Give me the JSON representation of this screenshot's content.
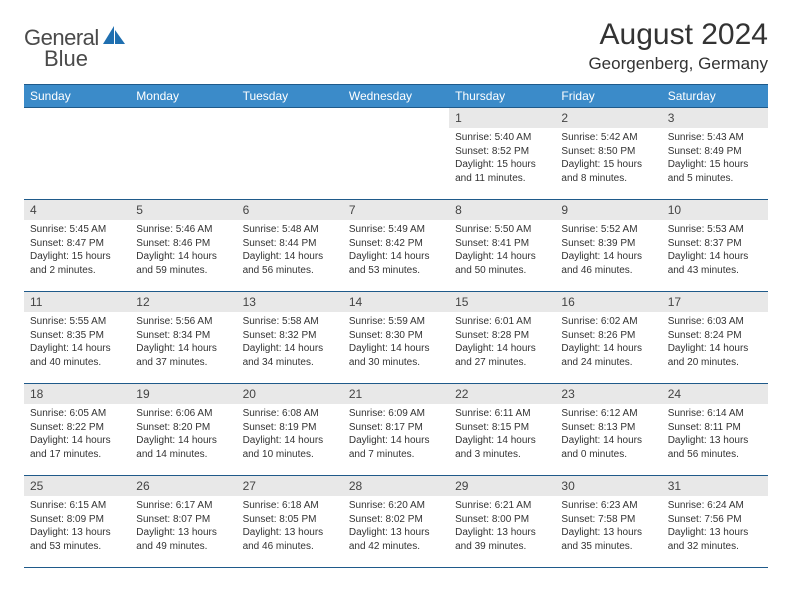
{
  "brand": {
    "name_prefix": "General",
    "name_suffix": "Blue"
  },
  "title": "August 2024",
  "location": "Georgenberg, Germany",
  "colors": {
    "header_bg": "#3b8bc9",
    "header_text": "#ffffff",
    "border": "#1f5a8a",
    "daynum_bg": "#e8e8e8",
    "body_text": "#333333",
    "logo_text": "#4a4a4a",
    "logo_icon": "#1f6fb0"
  },
  "day_names": [
    "Sunday",
    "Monday",
    "Tuesday",
    "Wednesday",
    "Thursday",
    "Friday",
    "Saturday"
  ],
  "weeks": [
    [
      {
        "empty": true
      },
      {
        "empty": true
      },
      {
        "empty": true
      },
      {
        "empty": true
      },
      {
        "n": "1",
        "sunrise": "5:40 AM",
        "sunset": "8:52 PM",
        "daylight": "15 hours and 11 minutes."
      },
      {
        "n": "2",
        "sunrise": "5:42 AM",
        "sunset": "8:50 PM",
        "daylight": "15 hours and 8 minutes."
      },
      {
        "n": "3",
        "sunrise": "5:43 AM",
        "sunset": "8:49 PM",
        "daylight": "15 hours and 5 minutes."
      }
    ],
    [
      {
        "n": "4",
        "sunrise": "5:45 AM",
        "sunset": "8:47 PM",
        "daylight": "15 hours and 2 minutes."
      },
      {
        "n": "5",
        "sunrise": "5:46 AM",
        "sunset": "8:46 PM",
        "daylight": "14 hours and 59 minutes."
      },
      {
        "n": "6",
        "sunrise": "5:48 AM",
        "sunset": "8:44 PM",
        "daylight": "14 hours and 56 minutes."
      },
      {
        "n": "7",
        "sunrise": "5:49 AM",
        "sunset": "8:42 PM",
        "daylight": "14 hours and 53 minutes."
      },
      {
        "n": "8",
        "sunrise": "5:50 AM",
        "sunset": "8:41 PM",
        "daylight": "14 hours and 50 minutes."
      },
      {
        "n": "9",
        "sunrise": "5:52 AM",
        "sunset": "8:39 PM",
        "daylight": "14 hours and 46 minutes."
      },
      {
        "n": "10",
        "sunrise": "5:53 AM",
        "sunset": "8:37 PM",
        "daylight": "14 hours and 43 minutes."
      }
    ],
    [
      {
        "n": "11",
        "sunrise": "5:55 AM",
        "sunset": "8:35 PM",
        "daylight": "14 hours and 40 minutes."
      },
      {
        "n": "12",
        "sunrise": "5:56 AM",
        "sunset": "8:34 PM",
        "daylight": "14 hours and 37 minutes."
      },
      {
        "n": "13",
        "sunrise": "5:58 AM",
        "sunset": "8:32 PM",
        "daylight": "14 hours and 34 minutes."
      },
      {
        "n": "14",
        "sunrise": "5:59 AM",
        "sunset": "8:30 PM",
        "daylight": "14 hours and 30 minutes."
      },
      {
        "n": "15",
        "sunrise": "6:01 AM",
        "sunset": "8:28 PM",
        "daylight": "14 hours and 27 minutes."
      },
      {
        "n": "16",
        "sunrise": "6:02 AM",
        "sunset": "8:26 PM",
        "daylight": "14 hours and 24 minutes."
      },
      {
        "n": "17",
        "sunrise": "6:03 AM",
        "sunset": "8:24 PM",
        "daylight": "14 hours and 20 minutes."
      }
    ],
    [
      {
        "n": "18",
        "sunrise": "6:05 AM",
        "sunset": "8:22 PM",
        "daylight": "14 hours and 17 minutes."
      },
      {
        "n": "19",
        "sunrise": "6:06 AM",
        "sunset": "8:20 PM",
        "daylight": "14 hours and 14 minutes."
      },
      {
        "n": "20",
        "sunrise": "6:08 AM",
        "sunset": "8:19 PM",
        "daylight": "14 hours and 10 minutes."
      },
      {
        "n": "21",
        "sunrise": "6:09 AM",
        "sunset": "8:17 PM",
        "daylight": "14 hours and 7 minutes."
      },
      {
        "n": "22",
        "sunrise": "6:11 AM",
        "sunset": "8:15 PM",
        "daylight": "14 hours and 3 minutes."
      },
      {
        "n": "23",
        "sunrise": "6:12 AM",
        "sunset": "8:13 PM",
        "daylight": "14 hours and 0 minutes."
      },
      {
        "n": "24",
        "sunrise": "6:14 AM",
        "sunset": "8:11 PM",
        "daylight": "13 hours and 56 minutes."
      }
    ],
    [
      {
        "n": "25",
        "sunrise": "6:15 AM",
        "sunset": "8:09 PM",
        "daylight": "13 hours and 53 minutes."
      },
      {
        "n": "26",
        "sunrise": "6:17 AM",
        "sunset": "8:07 PM",
        "daylight": "13 hours and 49 minutes."
      },
      {
        "n": "27",
        "sunrise": "6:18 AM",
        "sunset": "8:05 PM",
        "daylight": "13 hours and 46 minutes."
      },
      {
        "n": "28",
        "sunrise": "6:20 AM",
        "sunset": "8:02 PM",
        "daylight": "13 hours and 42 minutes."
      },
      {
        "n": "29",
        "sunrise": "6:21 AM",
        "sunset": "8:00 PM",
        "daylight": "13 hours and 39 minutes."
      },
      {
        "n": "30",
        "sunrise": "6:23 AM",
        "sunset": "7:58 PM",
        "daylight": "13 hours and 35 minutes."
      },
      {
        "n": "31",
        "sunrise": "6:24 AM",
        "sunset": "7:56 PM",
        "daylight": "13 hours and 32 minutes."
      }
    ]
  ],
  "labels": {
    "sunrise": "Sunrise:",
    "sunset": "Sunset:",
    "daylight": "Daylight:"
  }
}
